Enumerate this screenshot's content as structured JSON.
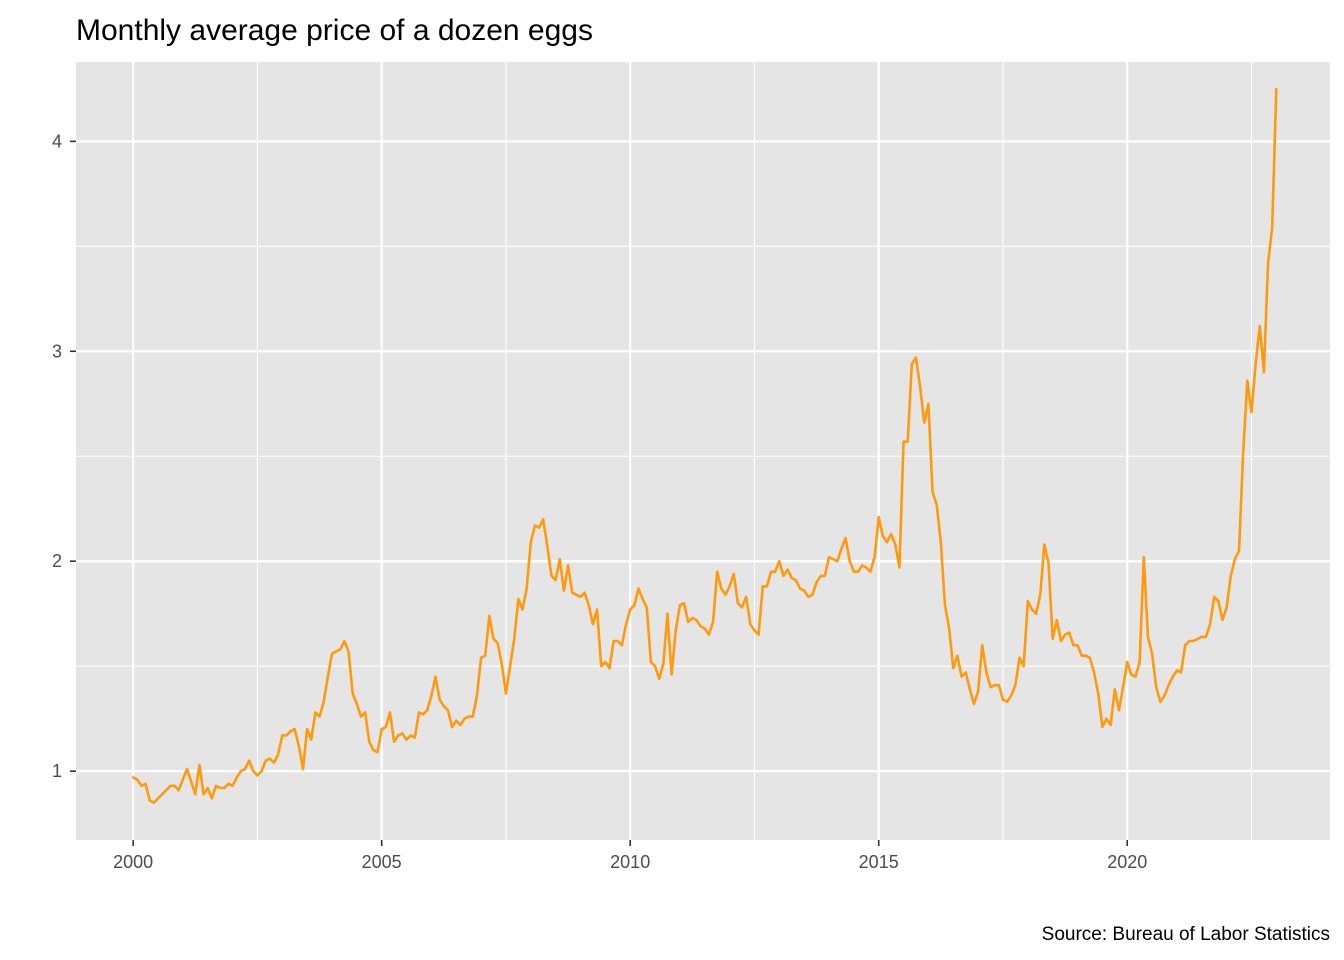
{
  "chart_data": {
    "type": "line",
    "title": "Monthly average price of a dozen eggs",
    "xlabel": "",
    "ylabel": "",
    "caption": "Source: Bureau of Labor Statistics",
    "xlim": [
      1998.85,
      2024.08
    ],
    "ylim": [
      0.672,
      4.378
    ],
    "x_ticks": [
      2000,
      2005,
      2010,
      2015,
      2020
    ],
    "x_tick_labels": [
      "2000",
      "2005",
      "2010",
      "2015",
      "2020"
    ],
    "y_ticks": [
      1,
      2,
      3,
      4
    ],
    "y_tick_labels": [
      "1",
      "2",
      "3",
      "4"
    ],
    "grid": true,
    "panel_background": "#e5e5e5",
    "grid_color": "#ffffff",
    "line_color": "#ff9a0e",
    "series": [
      {
        "x_start": 2000.0,
        "x_step": 0.083333,
        "values": [
          0.97,
          0.96,
          0.93,
          0.94,
          0.86,
          0.85,
          0.87,
          0.89,
          0.91,
          0.93,
          0.93,
          0.91,
          0.96,
          1.01,
          0.95,
          0.89,
          1.03,
          0.89,
          0.92,
          0.87,
          0.93,
          0.92,
          0.92,
          0.94,
          0.93,
          0.97,
          1.0,
          1.01,
          1.05,
          1.0,
          0.98,
          1.0,
          1.05,
          1.06,
          1.04,
          1.08,
          1.17,
          1.17,
          1.19,
          1.2,
          1.12,
          1.01,
          1.2,
          1.15,
          1.28,
          1.26,
          1.33,
          1.45,
          1.56,
          1.57,
          1.58,
          1.62,
          1.57,
          1.37,
          1.32,
          1.26,
          1.28,
          1.14,
          1.1,
          1.09,
          1.2,
          1.21,
          1.28,
          1.14,
          1.17,
          1.18,
          1.15,
          1.17,
          1.16,
          1.28,
          1.27,
          1.29,
          1.36,
          1.45,
          1.34,
          1.31,
          1.29,
          1.21,
          1.24,
          1.22,
          1.25,
          1.26,
          1.26,
          1.36,
          1.54,
          1.55,
          1.74,
          1.63,
          1.61,
          1.51,
          1.37,
          1.5,
          1.63,
          1.82,
          1.77,
          1.87,
          2.09,
          2.17,
          2.16,
          2.2,
          2.07,
          1.93,
          1.91,
          2.01,
          1.86,
          1.98,
          1.85,
          1.84,
          1.83,
          1.85,
          1.79,
          1.7,
          1.77,
          1.5,
          1.52,
          1.49,
          1.62,
          1.62,
          1.6,
          1.7,
          1.77,
          1.79,
          1.87,
          1.82,
          1.78,
          1.52,
          1.5,
          1.44,
          1.51,
          1.75,
          1.46,
          1.67,
          1.79,
          1.8,
          1.71,
          1.73,
          1.72,
          1.69,
          1.68,
          1.65,
          1.71,
          1.95,
          1.87,
          1.84,
          1.88,
          1.94,
          1.8,
          1.78,
          1.83,
          1.7,
          1.67,
          1.65,
          1.88,
          1.88,
          1.95,
          1.95,
          2.0,
          1.93,
          1.96,
          1.92,
          1.91,
          1.87,
          1.86,
          1.83,
          1.84,
          1.9,
          1.93,
          1.93,
          2.02,
          2.01,
          2.0,
          2.06,
          2.11,
          2.0,
          1.95,
          1.95,
          1.98,
          1.97,
          1.95,
          2.02,
          2.21,
          2.12,
          2.09,
          2.13,
          2.08,
          1.97,
          2.57,
          2.57,
          2.94,
          2.97,
          2.83,
          2.66,
          2.75,
          2.33,
          2.27,
          2.09,
          1.79,
          1.68,
          1.49,
          1.55,
          1.45,
          1.47,
          1.39,
          1.32,
          1.38,
          1.6,
          1.47,
          1.4,
          1.41,
          1.41,
          1.34,
          1.33,
          1.36,
          1.41,
          1.54,
          1.5,
          1.81,
          1.77,
          1.75,
          1.84,
          2.08,
          1.99,
          1.63,
          1.72,
          1.62,
          1.65,
          1.66,
          1.6,
          1.6,
          1.55,
          1.55,
          1.54,
          1.47,
          1.37,
          1.21,
          1.25,
          1.22,
          1.39,
          1.29,
          1.4,
          1.52,
          1.46,
          1.45,
          1.52,
          2.02,
          1.64,
          1.56,
          1.4,
          1.33,
          1.36,
          1.41,
          1.45,
          1.48,
          1.47,
          1.6,
          1.62,
          1.62,
          1.63,
          1.64,
          1.64,
          1.7,
          1.83,
          1.81,
          1.72,
          1.78,
          1.93,
          2.01,
          2.05,
          2.52,
          2.86,
          2.71,
          2.94,
          3.12,
          2.9,
          3.42,
          3.59,
          4.25
        ]
      }
    ]
  }
}
